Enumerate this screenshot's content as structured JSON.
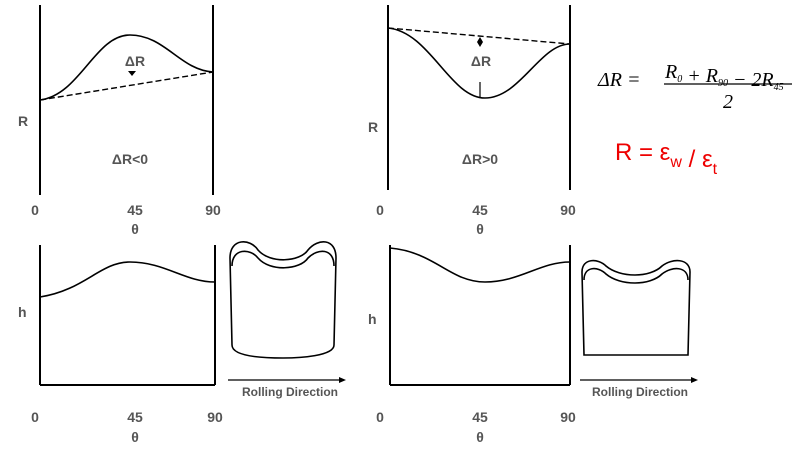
{
  "panels": [
    {
      "y_label": "R",
      "x_ticks": [
        "0",
        "45",
        "90"
      ],
      "x_label": "θ",
      "delta_label": "ΔR",
      "condition": "ΔR<0"
    },
    {
      "y_label": "R",
      "x_ticks": [
        "0",
        "45",
        "90"
      ],
      "x_label": "θ",
      "delta_label": "ΔR",
      "condition": "ΔR>0"
    },
    {
      "y_label": "h",
      "x_ticks": [
        "0",
        "45",
        "90"
      ],
      "x_label": "θ",
      "direction": "Rolling Direction"
    },
    {
      "y_label": "h",
      "x_ticks": [
        "0",
        "45",
        "90"
      ],
      "x_label": "θ",
      "direction": "Rolling Direction"
    }
  ],
  "formula": {
    "lhs": "ΔR =",
    "numerator": [
      {
        "text": "R",
        "sub": "0"
      },
      {
        "text": " + R",
        "sub": "90"
      },
      {
        "text": " − 2R",
        "sub": "45"
      }
    ],
    "denominator": "2"
  },
  "ratio": [
    {
      "text": "R = ε",
      "sub": "w"
    },
    {
      "text": " / ε",
      "sub": "t"
    }
  ]
}
